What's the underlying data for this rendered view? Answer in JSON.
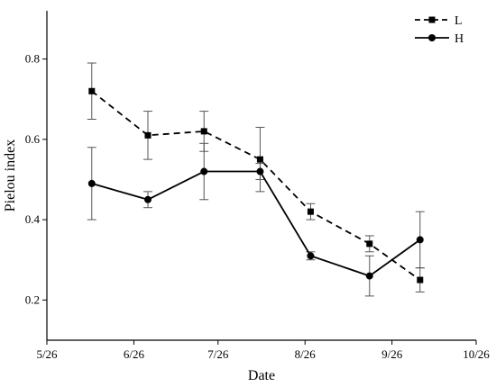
{
  "chart_data": {
    "type": "line",
    "xlabel": "Date",
    "ylabel": "Pielou index",
    "x_ticks": [
      "5/26",
      "6/26",
      "7/26",
      "8/26",
      "9/26",
      "10/26"
    ],
    "y_ticks": [
      "0.2",
      "0.4",
      "0.6",
      "0.8"
    ],
    "x_axis": {
      "type": "date",
      "min": "2000-05-26",
      "max": "2000-10-26"
    },
    "ylim": [
      0.1,
      0.92
    ],
    "legend_position": "top-right",
    "series": [
      {
        "name": "L",
        "marker": "square",
        "line_style": "dashed",
        "color": "#000000",
        "points": [
          {
            "date": "2000-06-11",
            "y": 0.72,
            "err": 0.07
          },
          {
            "date": "2000-07-01",
            "y": 0.61,
            "err": 0.06
          },
          {
            "date": "2000-07-21",
            "y": 0.62,
            "err": 0.05
          },
          {
            "date": "2000-08-10",
            "y": 0.55,
            "err": 0.08
          },
          {
            "date": "2000-08-28",
            "y": 0.42,
            "err": 0.02
          },
          {
            "date": "2000-09-18",
            "y": 0.34,
            "err": 0.02
          },
          {
            "date": "2000-10-06",
            "y": 0.25,
            "err": 0.03
          }
        ]
      },
      {
        "name": "H",
        "marker": "circle",
        "line_style": "solid",
        "color": "#000000",
        "points": [
          {
            "date": "2000-06-11",
            "y": 0.49,
            "err": 0.09
          },
          {
            "date": "2000-07-01",
            "y": 0.45,
            "err": 0.02
          },
          {
            "date": "2000-07-21",
            "y": 0.52,
            "err": 0.07
          },
          {
            "date": "2000-08-10",
            "y": 0.52,
            "err": 0.02
          },
          {
            "date": "2000-08-28",
            "y": 0.31,
            "err": 0.01
          },
          {
            "date": "2000-09-18",
            "y": 0.26,
            "err": 0.05
          },
          {
            "date": "2000-10-06",
            "y": 0.35,
            "err": 0.07
          }
        ]
      }
    ]
  }
}
